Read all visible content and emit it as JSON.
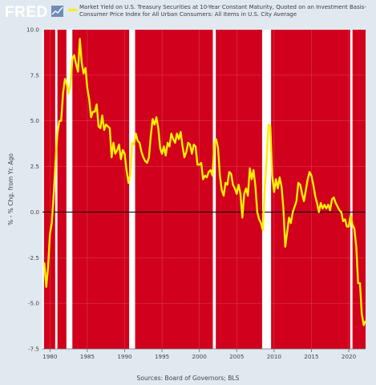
{
  "logo": {
    "text": "FRED"
  },
  "legend": {
    "label": "Market Yield on U.S. Treasury Securities at 10-Year Constant Maturity, Quoted on an Investment Basis-Consumer Price Index for All Urban Consumers: All Items in U.S. City Average",
    "color": "#ffee00"
  },
  "source": "Sources: Board of Governors; BLS",
  "colors": {
    "background": "#e1e9f0",
    "plot_background": "#ffffff",
    "recession_fill": "#d1001c",
    "series_line": "#ffee00",
    "zero_line": "#111111"
  },
  "chart_data": {
    "type": "line",
    "title": "",
    "xlabel": "",
    "ylabel": "% - % Chg. from Yr. Ago",
    "xlim": [
      1979.0,
      2022.25
    ],
    "ylim": [
      -7.5,
      10.0
    ],
    "x_ticks": [
      1980,
      1985,
      1990,
      1995,
      2000,
      2005,
      2010,
      2015,
      2020
    ],
    "x_tick_labels": [
      "1980",
      "1985",
      "1990",
      "1995",
      "2000",
      "2005",
      "2010",
      "2015",
      "2020"
    ],
    "y_ticks": [
      -7.5,
      -5.0,
      -2.5,
      0.0,
      2.5,
      5.0,
      7.5,
      10.0
    ],
    "y_tick_labels": [
      "-7.5",
      "-5.0",
      "-2.5",
      "0.0",
      "2.5",
      "5.0",
      "7.5",
      "10.0"
    ],
    "grid": true,
    "legend_position": "top",
    "shaded_regions": [
      [
        1979.2,
        1980.7
      ],
      [
        1981.0,
        1982.2
      ],
      [
        1983.0,
        1990.6
      ],
      [
        1991.4,
        2001.8
      ],
      [
        2002.2,
        2008.4
      ],
      [
        2009.6,
        2020.2
      ],
      [
        2020.5,
        2022.25
      ]
    ],
    "zero_line": 0,
    "series": [
      {
        "values": [
          [
            1979.25,
            -2.8
          ],
          [
            1979.5,
            -4.1
          ],
          [
            1979.75,
            -3.0
          ],
          [
            1980.0,
            -1.2
          ],
          [
            1980.25,
            -0.6
          ],
          [
            1980.5,
            1.0
          ],
          [
            1980.75,
            2.8
          ],
          [
            1981.0,
            4.3
          ],
          [
            1981.25,
            5.0
          ],
          [
            1981.5,
            5.0
          ],
          [
            1981.75,
            6.5
          ],
          [
            1982.0,
            7.3
          ],
          [
            1982.25,
            7.0
          ],
          [
            1982.5,
            6.5
          ],
          [
            1982.75,
            7.0
          ],
          [
            1983.0,
            8.4
          ],
          [
            1983.25,
            8.6
          ],
          [
            1983.5,
            8.1
          ],
          [
            1983.75,
            7.7
          ],
          [
            1984.0,
            9.5
          ],
          [
            1984.25,
            8.2
          ],
          [
            1984.5,
            7.6
          ],
          [
            1984.75,
            7.9
          ],
          [
            1985.0,
            6.8
          ],
          [
            1985.25,
            6.2
          ],
          [
            1985.5,
            5.2
          ],
          [
            1985.75,
            5.5
          ],
          [
            1986.0,
            5.5
          ],
          [
            1986.25,
            5.9
          ],
          [
            1986.5,
            4.7
          ],
          [
            1986.75,
            4.6
          ],
          [
            1987.0,
            5.3
          ],
          [
            1987.25,
            4.5
          ],
          [
            1987.5,
            4.8
          ],
          [
            1987.75,
            4.7
          ],
          [
            1988.0,
            4.6
          ],
          [
            1988.25,
            3.0
          ],
          [
            1988.5,
            3.8
          ],
          [
            1988.75,
            3.2
          ],
          [
            1989.0,
            3.4
          ],
          [
            1989.25,
            3.7
          ],
          [
            1989.5,
            2.9
          ],
          [
            1989.75,
            3.4
          ],
          [
            1990.0,
            3.2
          ],
          [
            1990.25,
            2.3
          ],
          [
            1990.5,
            1.6
          ],
          [
            1990.75,
            2.1
          ],
          [
            1991.0,
            3.8
          ],
          [
            1991.25,
            3.7
          ],
          [
            1991.5,
            4.3
          ],
          [
            1991.75,
            3.9
          ],
          [
            1992.0,
            3.8
          ],
          [
            1992.25,
            3.3
          ],
          [
            1992.5,
            3.0
          ],
          [
            1992.75,
            2.8
          ],
          [
            1993.0,
            2.7
          ],
          [
            1993.25,
            3.0
          ],
          [
            1993.5,
            4.2
          ],
          [
            1993.75,
            5.1
          ],
          [
            1994.0,
            4.8
          ],
          [
            1994.25,
            5.2
          ],
          [
            1994.5,
            4.6
          ],
          [
            1994.75,
            3.5
          ],
          [
            1995.0,
            3.2
          ],
          [
            1995.25,
            3.6
          ],
          [
            1995.5,
            3.1
          ],
          [
            1995.75,
            3.8
          ],
          [
            1996.0,
            3.6
          ],
          [
            1996.25,
            4.3
          ],
          [
            1996.5,
            4.0
          ],
          [
            1996.75,
            3.8
          ],
          [
            1997.0,
            4.3
          ],
          [
            1997.25,
            4.0
          ],
          [
            1997.5,
            4.4
          ],
          [
            1997.75,
            3.6
          ],
          [
            1998.0,
            3.0
          ],
          [
            1998.25,
            3.3
          ],
          [
            1998.5,
            3.8
          ],
          [
            1998.75,
            3.7
          ],
          [
            1999.0,
            3.2
          ],
          [
            1999.25,
            3.7
          ],
          [
            1999.5,
            3.6
          ],
          [
            1999.75,
            2.6
          ],
          [
            2000.0,
            2.6
          ],
          [
            2000.25,
            2.7
          ],
          [
            2000.5,
            1.8
          ],
          [
            2000.75,
            2.0
          ],
          [
            2001.0,
            1.9
          ],
          [
            2001.25,
            2.2
          ],
          [
            2001.5,
            2.3
          ],
          [
            2001.75,
            2.0
          ],
          [
            2002.0,
            3.7
          ],
          [
            2002.25,
            4.0
          ],
          [
            2002.5,
            3.5
          ],
          [
            2002.75,
            2.0
          ],
          [
            2003.0,
            1.2
          ],
          [
            2003.25,
            0.9
          ],
          [
            2003.5,
            1.6
          ],
          [
            2003.75,
            1.5
          ],
          [
            2004.0,
            2.2
          ],
          [
            2004.25,
            2.1
          ],
          [
            2004.5,
            1.5
          ],
          [
            2004.75,
            1.3
          ],
          [
            2005.0,
            1.0
          ],
          [
            2005.25,
            1.5
          ],
          [
            2005.5,
            1.0
          ],
          [
            2005.75,
            -0.3
          ],
          [
            2006.0,
            1.0
          ],
          [
            2006.25,
            1.3
          ],
          [
            2006.5,
            0.9
          ],
          [
            2006.75,
            2.4
          ],
          [
            2007.0,
            1.8
          ],
          [
            2007.25,
            2.3
          ],
          [
            2007.5,
            1.4
          ],
          [
            2007.75,
            0.0
          ],
          [
            2008.0,
            -0.4
          ],
          [
            2008.25,
            -0.6
          ],
          [
            2008.5,
            -1.0
          ],
          [
            2008.75,
            1.3
          ],
          [
            2009.0,
            2.9
          ],
          [
            2009.25,
            4.8
          ],
          [
            2009.5,
            4.7
          ],
          [
            2009.75,
            2.0
          ],
          [
            2010.0,
            1.1
          ],
          [
            2010.25,
            1.8
          ],
          [
            2010.5,
            1.3
          ],
          [
            2010.75,
            1.9
          ],
          [
            2011.0,
            1.4
          ],
          [
            2011.25,
            0.2
          ],
          [
            2011.5,
            -1.9
          ],
          [
            2011.75,
            -1.1
          ],
          [
            2012.0,
            -0.3
          ],
          [
            2012.25,
            -0.6
          ],
          [
            2012.5,
            0.0
          ],
          [
            2012.75,
            0.3
          ],
          [
            2013.0,
            0.6
          ],
          [
            2013.25,
            1.6
          ],
          [
            2013.5,
            1.5
          ],
          [
            2013.75,
            1.0
          ],
          [
            2014.0,
            0.6
          ],
          [
            2014.25,
            1.2
          ],
          [
            2014.5,
            1.8
          ],
          [
            2014.75,
            2.2
          ],
          [
            2015.0,
            2.0
          ],
          [
            2015.25,
            1.5
          ],
          [
            2015.5,
            0.9
          ],
          [
            2015.75,
            0.5
          ],
          [
            2016.0,
            0.0
          ],
          [
            2016.25,
            0.5
          ],
          [
            2016.5,
            0.2
          ],
          [
            2016.75,
            0.4
          ],
          [
            2017.0,
            0.2
          ],
          [
            2017.25,
            0.4
          ],
          [
            2017.5,
            0.1
          ],
          [
            2017.75,
            0.7
          ],
          [
            2018.0,
            0.8
          ],
          [
            2018.25,
            0.5
          ],
          [
            2018.5,
            0.3
          ],
          [
            2018.75,
            0.1
          ],
          [
            2019.0,
            0.0
          ],
          [
            2019.25,
            -0.5
          ],
          [
            2019.5,
            -0.4
          ],
          [
            2019.75,
            -0.8
          ],
          [
            2020.0,
            -0.8
          ],
          [
            2020.25,
            -0.2
          ],
          [
            2020.5,
            -0.7
          ],
          [
            2020.75,
            -0.9
          ],
          [
            2021.0,
            -1.9
          ],
          [
            2021.25,
            -3.9
          ],
          [
            2021.5,
            -3.9
          ],
          [
            2021.75,
            -5.6
          ],
          [
            2022.0,
            -6.2
          ],
          [
            2022.2,
            -6.0
          ]
        ]
      }
    ]
  }
}
